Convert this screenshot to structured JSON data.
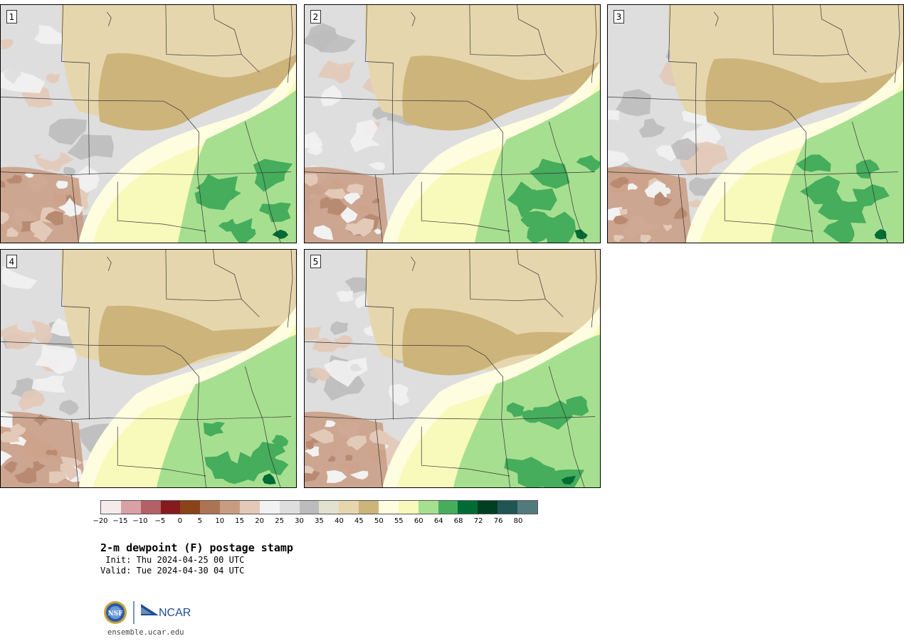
{
  "panels": [
    {
      "number": "1",
      "variant": 0
    },
    {
      "number": "2",
      "variant": 1
    },
    {
      "number": "3",
      "variant": 2
    },
    {
      "number": "4",
      "variant": 3
    },
    {
      "number": "5",
      "variant": 4
    }
  ],
  "colorbar": {
    "colors": [
      "#f5ebeb",
      "#d8a1a6",
      "#b36066",
      "#861a1f",
      "#8a4417",
      "#ad7453",
      "#c99c82",
      "#e3c9b8",
      "#f2f2f2",
      "#dedede",
      "#bcbcbc",
      "#e2e2d1",
      "#e6d6ad",
      "#cdb47b",
      "#fffde0",
      "#f7faba",
      "#a7df90",
      "#45ad5c",
      "#006c35",
      "#003e24",
      "#1f5654",
      "#527a7d"
    ],
    "tick_labels": [
      "−20",
      "−15",
      "−10",
      "−5",
      "0",
      "5",
      "10",
      "15",
      "20",
      "25",
      "30",
      "35",
      "40",
      "45",
      "50",
      "55",
      "60",
      "64",
      "68",
      "72",
      "76",
      "80"
    ]
  },
  "title": "2-m dewpoint (F) postage stamp",
  "init": " Init: Thu 2024-04-25 00 UTC",
  "valid": "Valid: Tue 2024-04-30 04 UTC",
  "logo": {
    "left_text": "NSF",
    "right_text": "NCAR"
  },
  "site": "ensemble.ucar.edu"
}
